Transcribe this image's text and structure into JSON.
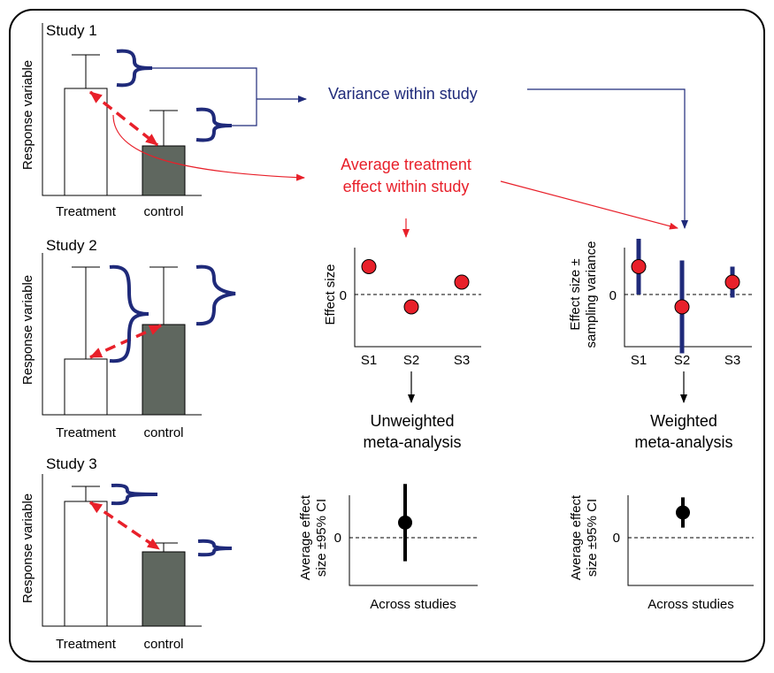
{
  "colors": {
    "navy": "#1f2a7a",
    "red": "#e8202a",
    "bar_control": "#5f675f",
    "black": "#000000"
  },
  "studies": [
    {
      "title": "Study 1",
      "ylabel": "Response variable",
      "treatment_label": "Treatment",
      "control_label": "control"
    },
    {
      "title": "Study 2",
      "ylabel": "Response variable",
      "treatment_label": "Treatment",
      "control_label": "control"
    },
    {
      "title": "Study 3",
      "ylabel": "Response variable",
      "treatment_label": "Treatment",
      "control_label": null
    }
  ],
  "labels": {
    "variance_within": "Variance within study",
    "avg_effect_line1": "Average treatment",
    "avg_effect_line2": "effect within study",
    "study3_control": "control"
  },
  "effect_plot": {
    "ylabel": "Effect size",
    "zero": "0",
    "categories": [
      "S1",
      "S2",
      "S3"
    ],
    "values": [
      0.9,
      -0.4,
      0.4
    ]
  },
  "weighted_plot": {
    "ylabel_line1": "Effect size ±",
    "ylabel_line2": "sampling variance",
    "zero": "0",
    "categories": [
      "S1",
      "S2",
      "S3"
    ],
    "values": [
      0.9,
      -0.4,
      0.4
    ],
    "variance": [
      0.9,
      1.5,
      0.5
    ]
  },
  "unweighted": {
    "title_line1": "Unweighted",
    "title_line2": "meta-analysis",
    "ylabel_line1": "Average effect",
    "ylabel_line2": "size ±95% CI",
    "zero": "0",
    "xlabel": "Across studies",
    "mean": 0.45,
    "ci": 1.15
  },
  "weighted": {
    "title_line1": "Weighted",
    "title_line2": "meta-analysis",
    "ylabel_line1": "Average effect",
    "ylabel_line2": "size ±95% CI",
    "zero": "0",
    "xlabel": "Across studies",
    "mean": 0.75,
    "ci": 0.45
  }
}
